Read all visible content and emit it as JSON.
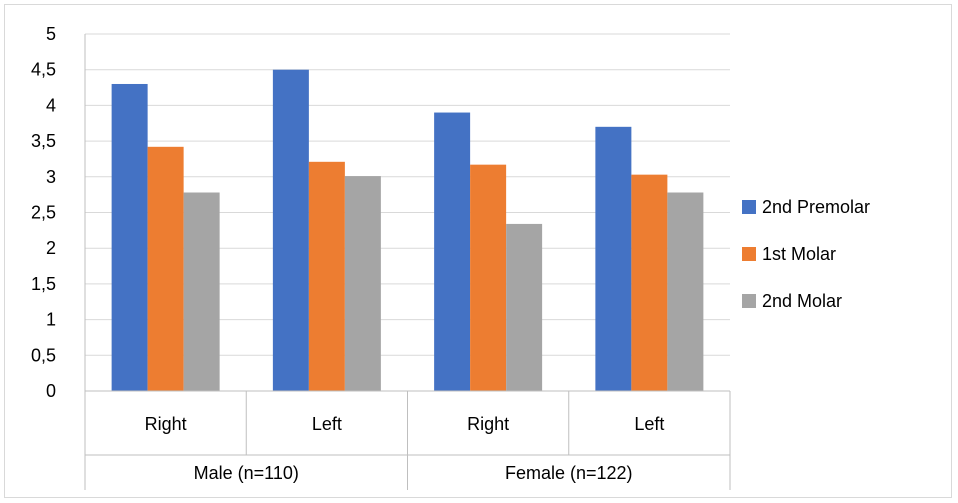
{
  "chart_data": {
    "type": "bar",
    "categories": [
      "Right",
      "Left",
      "Right",
      "Left"
    ],
    "groups": [
      {
        "label": "Male (n=110)",
        "categories": [
          "Right",
          "Left"
        ]
      },
      {
        "label": "Female (n=122)",
        "categories": [
          "Right",
          "Left"
        ]
      }
    ],
    "series": [
      {
        "name": "2nd Premolar",
        "color": "#4472c4",
        "values": [
          4.3,
          4.5,
          3.9,
          3.7
        ]
      },
      {
        "name": "1st Molar",
        "color": "#ed7d31",
        "values": [
          3.42,
          3.21,
          3.17,
          3.03
        ]
      },
      {
        "name": "2nd Molar",
        "color": "#a5a5a5",
        "values": [
          2.78,
          3.01,
          2.34,
          2.78
        ]
      }
    ],
    "yticks": [
      "0",
      "0,5",
      "1",
      "1,5",
      "2",
      "2,5",
      "3",
      "3,5",
      "4",
      "4,5",
      "5"
    ],
    "ylim": [
      0,
      5
    ],
    "grid": true,
    "legend": "right"
  }
}
